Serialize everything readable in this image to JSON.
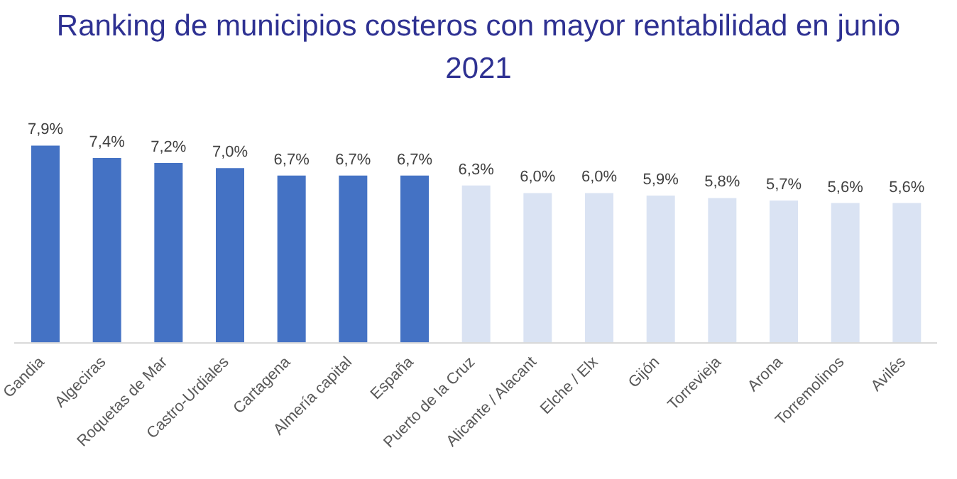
{
  "chart_data": {
    "type": "bar",
    "title": "Ranking de municipios costeros con mayor rentabilidad en junio 2021",
    "categories": [
      "Gandia",
      "Algeciras",
      "Roquetas de Mar",
      "Castro-Urdiales",
      "Cartagena",
      "Almería capital",
      "España",
      "Puerto de la Cruz",
      "Alicante / Alacant",
      "Elche / Elx",
      "Gijón",
      "Torrevieja",
      "Arona",
      "Torremolinos",
      "Avilés"
    ],
    "values": [
      7.9,
      7.4,
      7.2,
      7.0,
      6.7,
      6.7,
      6.7,
      6.3,
      6.0,
      6.0,
      5.9,
      5.8,
      5.7,
      5.6,
      5.6
    ],
    "value_labels": [
      "7,9%",
      "7,4%",
      "7,2%",
      "7,0%",
      "6,7%",
      "6,7%",
      "6,7%",
      "6,3%",
      "6,0%",
      "6,0%",
      "5,9%",
      "5,8%",
      "5,7%",
      "5,6%",
      "5,6%"
    ],
    "colors": [
      "#4472c4",
      "#4472c4",
      "#4472c4",
      "#4472c4",
      "#4472c4",
      "#4472c4",
      "#4472c4",
      "#dae3f3",
      "#dae3f3",
      "#dae3f3",
      "#dae3f3",
      "#dae3f3",
      "#dae3f3",
      "#dae3f3",
      "#dae3f3"
    ],
    "grid": false,
    "legend": false
  }
}
